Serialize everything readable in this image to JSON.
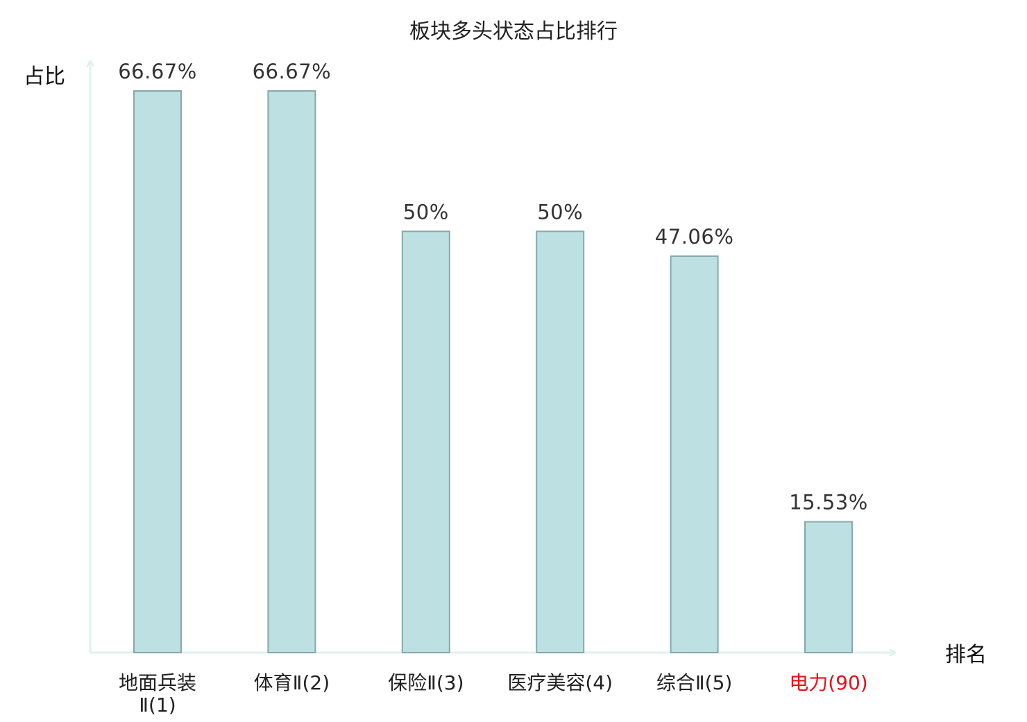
{
  "chart_data": {
    "type": "bar",
    "title": "板块多头状态占比排行",
    "ylabel": "占比",
    "xlabel": "排名",
    "categories": [
      [
        "地面兵装",
        "Ⅱ(1)"
      ],
      [
        "体育Ⅱ(2)"
      ],
      [
        "保险Ⅱ(3)"
      ],
      [
        "医疗美容(4)"
      ],
      [
        "综合Ⅱ(5)"
      ],
      [
        "电力(90)"
      ]
    ],
    "values": [
      66.67,
      66.67,
      50,
      50,
      47.06,
      15.53
    ],
    "value_labels": [
      "66.67%",
      "66.67%",
      "50%",
      "50%",
      "47.06%",
      "15.53%"
    ],
    "highlight_index": 5,
    "ylim": [
      0,
      66.67
    ],
    "grid": false,
    "colors": {
      "bar_fill": "#bde0e2",
      "bar_stroke": "#86a8aa",
      "axis": "#e0f2ef",
      "tick_text": "#222222",
      "highlight_text": "#e8101a"
    }
  }
}
